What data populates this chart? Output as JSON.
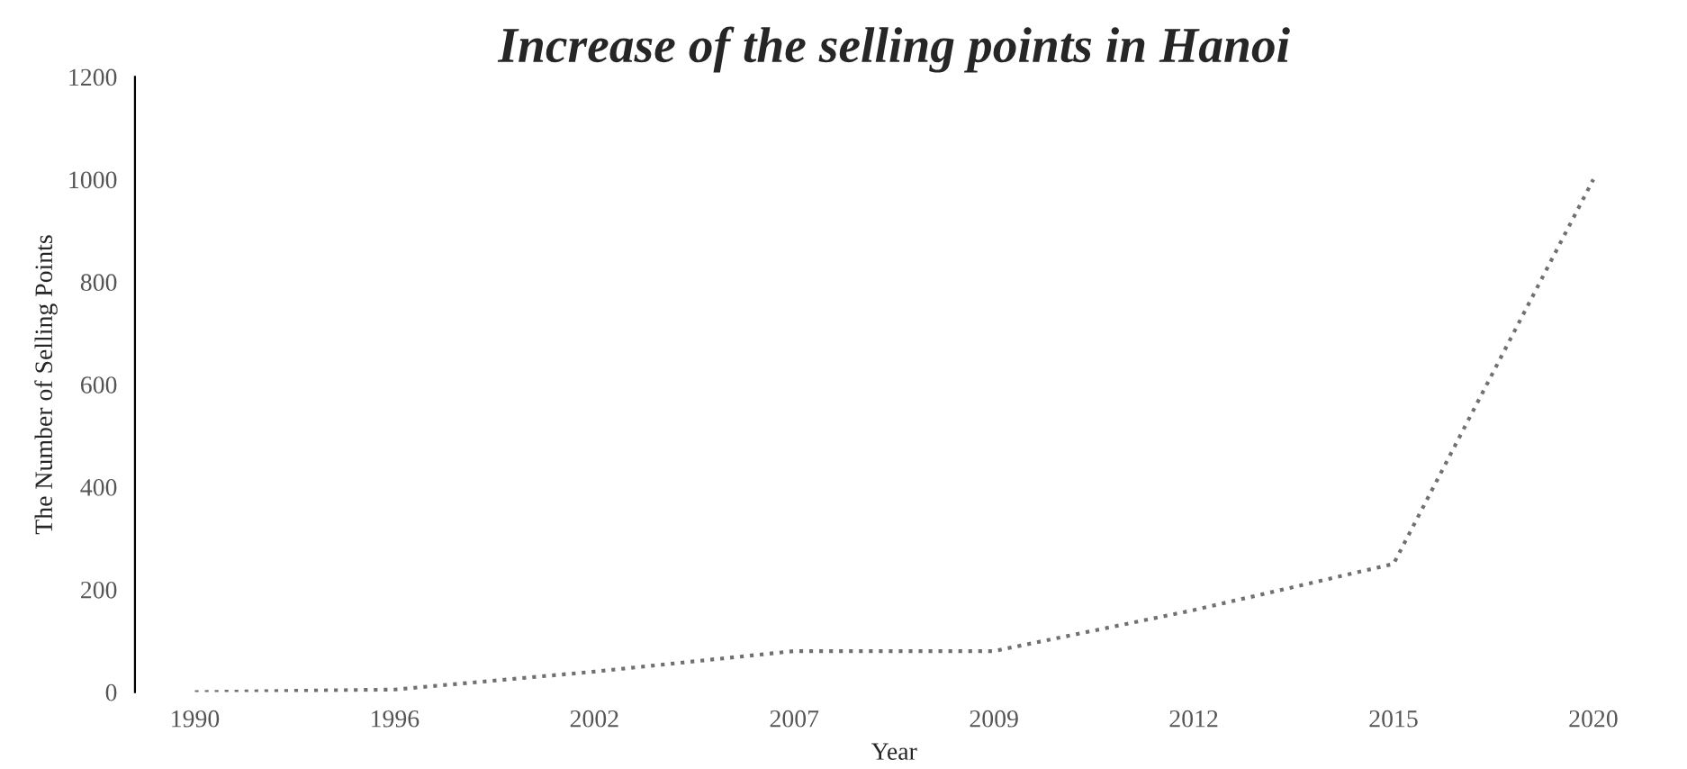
{
  "chart_data": {
    "type": "line",
    "title": "Increase of the selling points in Hanoi",
    "xlabel": "Year",
    "ylabel": "The Number of Selling Points",
    "categories": [
      "1990",
      "1996",
      "2002",
      "2007",
      "2009",
      "2012",
      "2015",
      "2020"
    ],
    "series": [
      {
        "color": "#707070",
        "values": [
          0,
          5,
          40,
          80,
          80,
          160,
          250,
          1000
        ]
      }
    ],
    "ylim": [
      0,
      1200
    ],
    "yticks": [
      0,
      200,
      400,
      600,
      800,
      1000,
      1200
    ],
    "line_style": "dotted",
    "marker": "none",
    "grid": false,
    "legend": false
  }
}
